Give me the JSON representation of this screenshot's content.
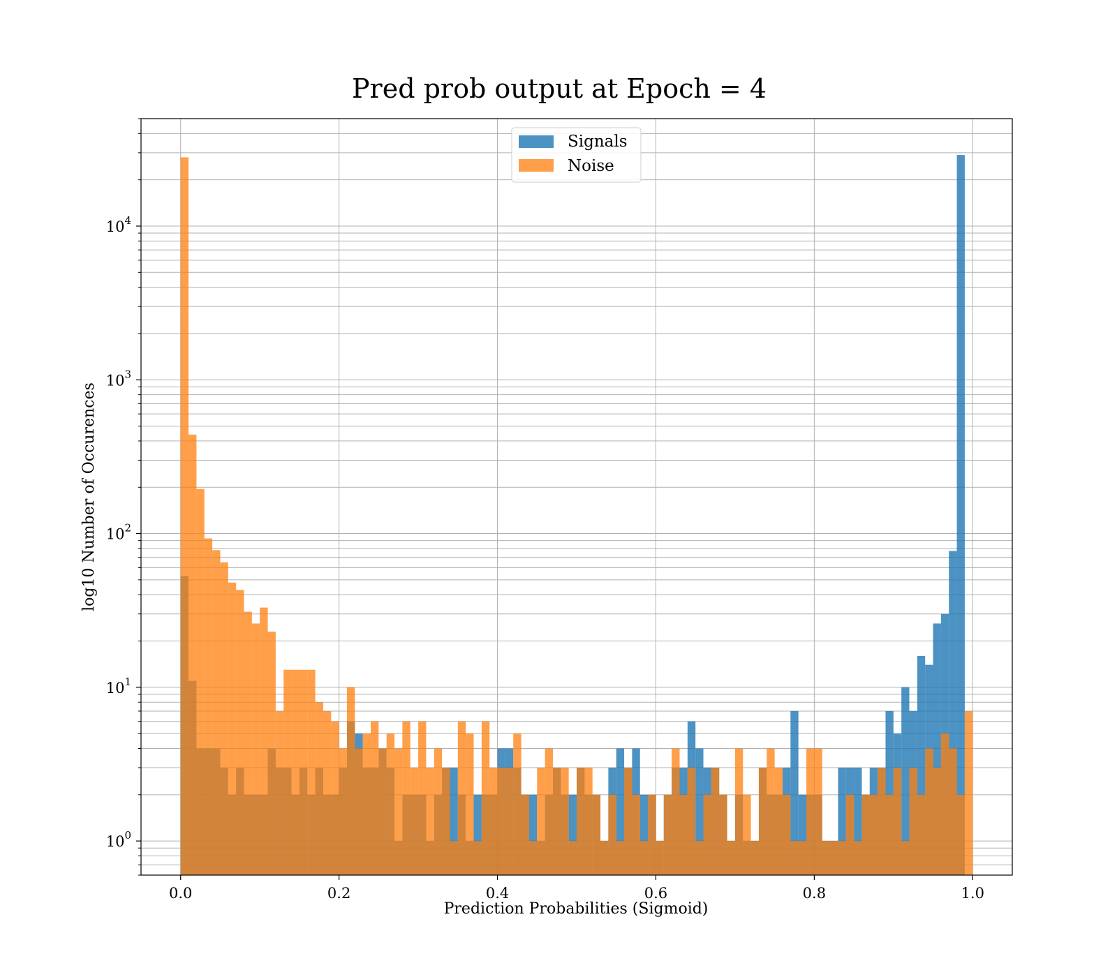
{
  "chart_data": {
    "type": "bar",
    "title": "Pred prob output at Epoch = 4",
    "xlabel": "Prediction Probabilities (Sigmoid)",
    "ylabel": "log10 Number of Occurences",
    "yscale": "log",
    "xlim": [
      -0.05,
      1.05
    ],
    "ylim": [
      0.6,
      50000
    ],
    "grid": true,
    "legend_position": "upper center",
    "x_ticks": [
      {
        "value": 0.0,
        "label": "0.0"
      },
      {
        "value": 0.2,
        "label": "0.2"
      },
      {
        "value": 0.4,
        "label": "0.4"
      },
      {
        "value": 0.6,
        "label": "0.6"
      },
      {
        "value": 0.8,
        "label": "0.8"
      },
      {
        "value": 1.0,
        "label": "1.0"
      }
    ],
    "y_ticks": [
      {
        "value": 1,
        "base": "10",
        "exp": "0"
      },
      {
        "value": 10,
        "base": "10",
        "exp": "1"
      },
      {
        "value": 100,
        "base": "10",
        "exp": "2"
      },
      {
        "value": 1000,
        "base": "10",
        "exp": "3"
      },
      {
        "value": 10000,
        "base": "10",
        "exp": "4"
      }
    ],
    "bin_range": [
      0.0,
      1.0
    ],
    "bin_count": 100,
    "series": [
      {
        "name": "Signals",
        "color": "#1f77b4",
        "opacity": 0.8,
        "values": [
          53,
          11,
          4,
          4,
          4,
          3,
          2,
          3,
          2,
          2,
          2,
          4,
          3,
          3,
          2,
          3,
          2,
          3,
          2,
          2,
          3,
          6,
          5,
          3,
          3,
          4,
          3,
          1,
          2,
          2,
          2,
          1,
          2,
          3,
          3,
          2,
          1,
          2,
          2,
          2,
          4,
          4,
          3,
          2,
          2,
          1,
          2,
          3,
          2,
          2,
          3,
          2,
          2,
          1,
          3,
          4,
          3,
          4,
          2,
          2,
          1,
          2,
          3,
          3,
          6,
          4,
          3,
          3,
          2,
          1,
          2,
          1,
          1,
          3,
          2,
          2,
          3,
          7,
          2,
          2,
          2,
          1,
          1,
          3,
          3,
          3,
          2,
          3,
          3,
          7,
          5,
          10,
          7,
          16,
          14,
          26,
          30,
          77,
          29000,
          0
        ]
      },
      {
        "name": "Noise",
        "color": "#ff7f0e",
        "opacity": 0.75,
        "values": [
          28000,
          440,
          195,
          93,
          78,
          65,
          48,
          43,
          31,
          26,
          33,
          23,
          7,
          13,
          13,
          13,
          13,
          8,
          7,
          6,
          4,
          10,
          4,
          5,
          6,
          4,
          5,
          4,
          6,
          3,
          6,
          3,
          4,
          3,
          1,
          6,
          5,
          1,
          6,
          3,
          3,
          3,
          5,
          2,
          1,
          3,
          4,
          3,
          3,
          1,
          3,
          3,
          2,
          1,
          2,
          1,
          3,
          2,
          1,
          2,
          1,
          2,
          4,
          2,
          3,
          1,
          2,
          3,
          2,
          1,
          4,
          2,
          1,
          3,
          4,
          3,
          2,
          1,
          1,
          4,
          4,
          1,
          1,
          1,
          2,
          1,
          2,
          2,
          3,
          2,
          3,
          1,
          3,
          2,
          4,
          3,
          5,
          4,
          2,
          7
        ]
      }
    ]
  }
}
